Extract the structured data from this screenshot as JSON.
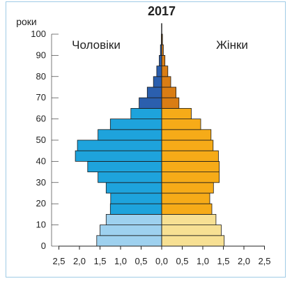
{
  "chart_data": {
    "type": "bar",
    "title": "2017",
    "ylabel": "роки",
    "yticks": [
      0,
      10,
      20,
      30,
      40,
      50,
      60,
      70,
      80,
      90,
      100
    ],
    "xticks": [
      "2,5",
      "2,0",
      "1,5",
      "1,0",
      "0,5",
      "0,0",
      "0,5",
      "1,0",
      "1,5",
      "2,0",
      "2,5"
    ],
    "xlim": [
      -2.5,
      2.5
    ],
    "ylim": [
      0,
      100
    ],
    "annotations": {
      "left": "Чоловіки",
      "right": "Жінки"
    },
    "age_groups": [
      "0-4",
      "5-9",
      "10-14",
      "15-19",
      "20-24",
      "25-29",
      "30-34",
      "35-39",
      "40-44",
      "45-49",
      "50-54",
      "55-59",
      "60-64",
      "65-69",
      "70-74",
      "75-79",
      "80-84",
      "85-89",
      "90-94",
      "95-99",
      "100+"
    ],
    "series": [
      {
        "name": "Чоловіки",
        "values": [
          1.58,
          1.5,
          1.35,
          1.25,
          1.24,
          1.35,
          1.55,
          1.8,
          2.1,
          2.05,
          1.55,
          1.25,
          0.75,
          0.55,
          0.35,
          0.2,
          0.12,
          0.06,
          0.03,
          0.01,
          0.005
        ],
        "colors": [
          "#9ed1ef",
          "#9ed1ef",
          "#9ed1ef",
          "#1ea3dc",
          "#1ea3dc",
          "#1ea3dc",
          "#1ea3dc",
          "#1ea3dc",
          "#1ea3dc",
          "#1ea3dc",
          "#1ea3dc",
          "#1ea3dc",
          "#1ea3dc",
          "#2b5fae",
          "#2b5fae",
          "#2b5fae",
          "#2b5fae",
          "#2b5fae",
          "#2b5fae",
          "#2b5fae",
          "#2b5fae"
        ]
      },
      {
        "name": "Жінки",
        "values": [
          1.52,
          1.45,
          1.32,
          1.22,
          1.17,
          1.26,
          1.4,
          1.4,
          1.38,
          1.25,
          1.2,
          0.95,
          0.72,
          0.42,
          0.35,
          0.22,
          0.15,
          0.08,
          0.04,
          0.02,
          0.005
        ],
        "colors": [
          "#f7e093",
          "#f7e093",
          "#f7e093",
          "#f6ab18",
          "#f6ab18",
          "#f6ab18",
          "#f6ab18",
          "#f6ab18",
          "#f6ab18",
          "#f6ab18",
          "#f6ab18",
          "#f6ab18",
          "#f6ab18",
          "#d97d14",
          "#d97d14",
          "#d97d14",
          "#d97d14",
          "#d97d14",
          "#d97d14",
          "#d97d14",
          "#d97d14"
        ]
      }
    ]
  }
}
